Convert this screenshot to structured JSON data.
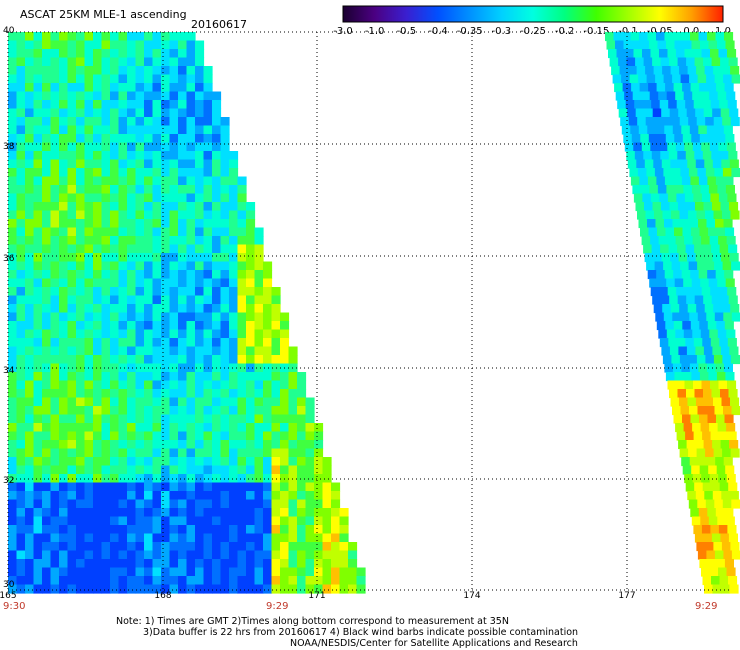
{
  "header": {
    "title": "ASCAT 25KM MLE-1 ascending",
    "date": "20160617"
  },
  "colorbar": {
    "labels": [
      "-3.0",
      "-1.0",
      "-0.5",
      "-0.4",
      "-0.35",
      "-0.3",
      "-0.25",
      "-0.2",
      "-0.15",
      "-0.1",
      "-0.05",
      "0.0",
      "1.0"
    ],
    "colors": [
      "#1a0030",
      "#4b0082",
      "#3a1fd0",
      "#0050ff",
      "#0090ff",
      "#00d0ff",
      "#00ffe0",
      "#00ff80",
      "#40ff00",
      "#a0ff00",
      "#ffff00",
      "#ffa000",
      "#ff2000"
    ]
  },
  "map": {
    "lat_labels": [
      "40",
      "38",
      "36",
      "34",
      "32",
      "30"
    ],
    "lon_labels": [
      "165",
      "168",
      "171",
      "174",
      "177"
    ],
    "time_labels": {
      "left": "9:30",
      "middle": "9:29",
      "right": "9:29"
    },
    "grid_color": "#000000"
  },
  "notes": {
    "line1": "Note: 1) Times are GMT 2)Times along bottom correspond to measurement at 35N",
    "line2": "3)Data buffer is 22 hrs from 20160617 4) Black wind barbs indicate possible contamination",
    "line3": "NOAA/NESDIS/Center for Satellite Applications and Research"
  }
}
